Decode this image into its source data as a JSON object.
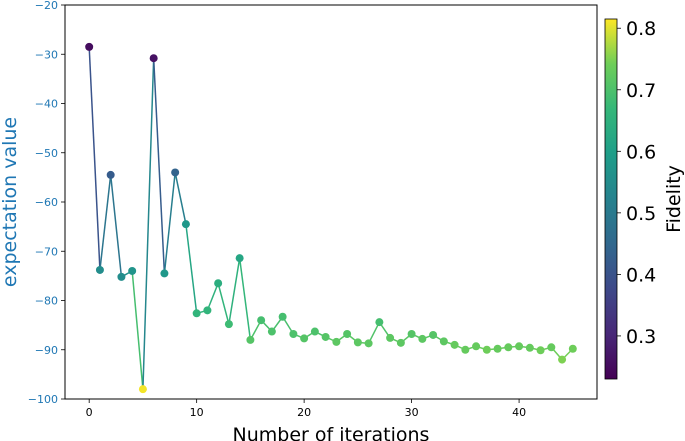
{
  "chart_data": {
    "type": "line",
    "xlabel": "Number of iterations",
    "ylabel": "expectation value",
    "xlim": [
      -2.25,
      47.25
    ],
    "ylim": [
      -100,
      -20
    ],
    "x_ticks": [
      0,
      10,
      20,
      30,
      40
    ],
    "x_tick_labels": [
      "0",
      "10",
      "20",
      "30",
      "40"
    ],
    "y_ticks": [
      -20,
      -30,
      -40,
      -50,
      -60,
      -70,
      -80,
      -90,
      -100
    ],
    "y_tick_labels": [
      "−20",
      "−30",
      "−40",
      "−50",
      "−60",
      "−70",
      "−80",
      "−90",
      "−100"
    ],
    "grid": false,
    "colorbar": {
      "label": "Fidelity",
      "range": [
        0.23,
        0.815
      ],
      "ticks": [
        0.3,
        0.4,
        0.5,
        0.6,
        0.7,
        0.8
      ],
      "tick_labels": [
        "0.3",
        "0.4",
        "0.5",
        "0.6",
        "0.7",
        "0.8"
      ],
      "colormap": "viridis"
    },
    "series": [
      {
        "x": [
          0,
          1,
          2,
          3,
          4,
          5,
          6,
          7,
          8,
          9,
          10,
          11,
          12,
          13,
          14,
          15,
          16,
          17,
          18,
          19,
          20,
          21,
          22,
          23,
          24,
          25,
          26,
          27,
          28,
          29,
          30,
          31,
          32,
          33,
          34,
          35,
          36,
          37,
          38,
          39,
          40,
          41,
          42,
          43,
          44,
          45
        ],
        "y": [
          -28.5,
          -73.8,
          -54.5,
          -75.2,
          -74.0,
          -98.0,
          -30.8,
          -74.5,
          -54.0,
          -64.5,
          -82.6,
          -82.0,
          -76.5,
          -84.8,
          -71.4,
          -88.0,
          -84.0,
          -86.3,
          -83.3,
          -86.8,
          -87.7,
          -86.3,
          -87.4,
          -88.4,
          -86.8,
          -88.5,
          -88.7,
          -84.4,
          -87.6,
          -88.6,
          -86.8,
          -87.8,
          -87.0,
          -88.3,
          -89.0,
          -90.0,
          -89.3,
          -90.0,
          -89.8,
          -89.5,
          -89.3,
          -89.6,
          -90.1,
          -89.5,
          -92.0,
          -89.8
        ],
        "fidelity": [
          0.25,
          0.55,
          0.42,
          0.55,
          0.57,
          0.81,
          0.26,
          0.58,
          0.44,
          0.58,
          0.66,
          0.66,
          0.64,
          0.68,
          0.62,
          0.71,
          0.69,
          0.7,
          0.69,
          0.7,
          0.71,
          0.7,
          0.71,
          0.72,
          0.71,
          0.72,
          0.72,
          0.69,
          0.72,
          0.72,
          0.71,
          0.72,
          0.71,
          0.72,
          0.73,
          0.73,
          0.73,
          0.74,
          0.73,
          0.73,
          0.73,
          0.73,
          0.74,
          0.73,
          0.75,
          0.74
        ]
      }
    ]
  }
}
